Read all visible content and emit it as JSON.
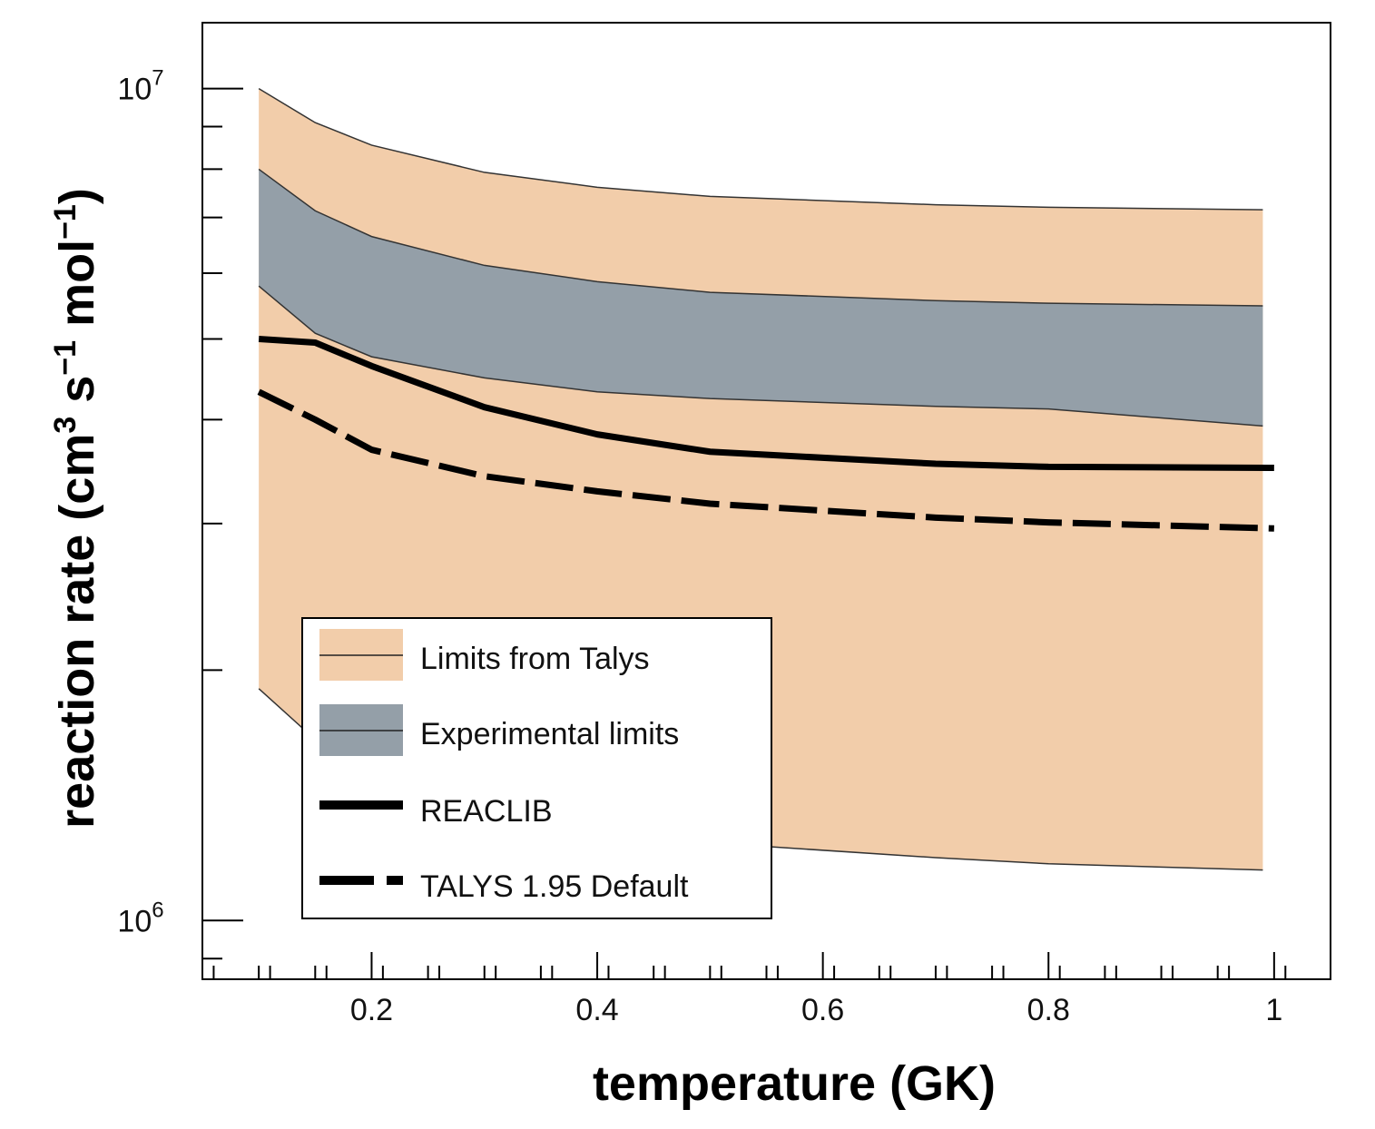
{
  "chart_data": {
    "type": "area",
    "xlabel": "temperature (GK)",
    "ylabel": {
      "main": "reaction rate (cm",
      "sup1": "3",
      "mid1": " s",
      "sup2": "−1",
      "mid2": " mol",
      "sup3": "−1",
      "end": ")"
    },
    "xlim": [
      0.05,
      1.05
    ],
    "ylim": [
      850000,
      12000000
    ],
    "yscale": "log",
    "grid": false,
    "legend_position": "lower-left",
    "x_ticks": [
      {
        "value": 0.2,
        "label": "0.2"
      },
      {
        "value": 0.4,
        "label": "0.4"
      },
      {
        "value": 0.6,
        "label": "0.6"
      },
      {
        "value": 0.8,
        "label": "0.8"
      },
      {
        "value": 1.0,
        "label": "1"
      }
    ],
    "y_ticks": [
      {
        "value": 1000000,
        "base": "10",
        "exp": "6"
      },
      {
        "value": 10000000,
        "base": "10",
        "exp": "7"
      }
    ],
    "x": [
      0.1,
      0.15,
      0.2,
      0.3,
      0.4,
      0.5,
      0.7,
      0.8,
      0.99
    ],
    "series": [
      {
        "name": "Limits from Talys",
        "kind": "band",
        "color": "#f2cdaa",
        "lower": [
          1900000,
          1650000,
          1520000,
          1380000,
          1290000,
          1240000,
          1190000,
          1170000,
          1150000
        ],
        "upper": [
          10000000,
          9100000,
          8550000,
          7930000,
          7610000,
          7420000,
          7250000,
          7200000,
          7150000
        ]
      },
      {
        "name": "Experimental limits",
        "kind": "band",
        "color": "#949fa8",
        "lower": [
          5790000,
          5080000,
          4760000,
          4490000,
          4320000,
          4240000,
          4150000,
          4120000,
          3930000
        ],
        "upper": [
          8000000,
          7130000,
          6640000,
          6130000,
          5860000,
          5690000,
          5560000,
          5520000,
          5480000
        ]
      },
      {
        "name": "REACLIB",
        "kind": "line",
        "style": "solid",
        "color": "#000000",
        "values": [
          5000000,
          4950000,
          4640000,
          4140000,
          3840000,
          3660000,
          3540000,
          3510000,
          3500000
        ]
      },
      {
        "name": "TALYS 1.95 Default",
        "kind": "line",
        "style": "dashed",
        "color": "#000000",
        "values": [
          4320000,
          4000000,
          3680000,
          3420000,
          3280000,
          3170000,
          3050000,
          3010000,
          2960000
        ]
      }
    ]
  }
}
